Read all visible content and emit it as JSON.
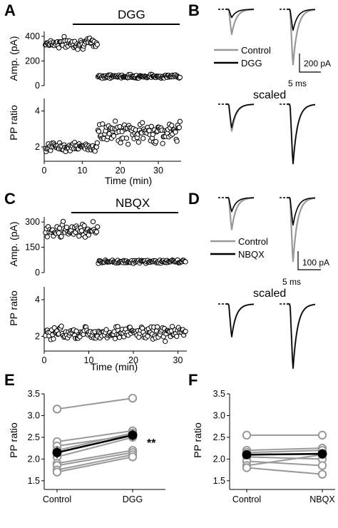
{
  "panels": {
    "A": "A",
    "B": "B",
    "C": "C",
    "D": "D",
    "E": "E",
    "F": "F"
  },
  "colors": {
    "control": "#999999",
    "drug": "#000000"
  },
  "traces": {
    "B": {
      "legend": [
        "Control",
        "DGG"
      ],
      "scale_amp": "200 pA",
      "scale_time": "5 ms",
      "scaled_label": "scaled",
      "control_p1": 0.45,
      "control_p2": 1.0,
      "drug_p1": 0.15,
      "drug_p2": 0.38
    },
    "D": {
      "legend": [
        "Control",
        "NBQX"
      ],
      "scale_amp": "100 pA",
      "scale_time": "5 ms",
      "scaled_label": "scaled",
      "control_p1": 0.5,
      "control_p2": 1.0,
      "drug_p1": 0.22,
      "drug_p2": 0.43
    }
  },
  "chart_data": [
    {
      "panel": "A",
      "type": "scatter",
      "drug_label": "DGG",
      "drug_start": 7.5,
      "xlabel": "Time (min)",
      "xticks": [
        0,
        10,
        20,
        30
      ],
      "xlim": [
        0,
        36
      ],
      "top": {
        "ylabel": "Amp. (pA)",
        "yticks": [
          0,
          200,
          400
        ],
        "ylim": [
          0,
          440
        ],
        "baseline": 345,
        "baseline_sd": 35,
        "baseline_end": 14,
        "drug": 75,
        "drug_sd": 12
      },
      "bottom": {
        "ylabel": "PP ratio",
        "yticks": [
          2,
          4
        ],
        "ylim": [
          1.2,
          4.7
        ],
        "baseline": 2.0,
        "baseline_sd": 0.2,
        "baseline_end": 14,
        "drug": 2.8,
        "drug_sd": 0.45
      },
      "n_points": 180
    },
    {
      "panel": "C",
      "type": "scatter",
      "drug_label": "NBQX",
      "drug_start": 6,
      "xlabel": "Time (min)",
      "xticks": [
        0,
        10,
        20,
        30
      ],
      "xlim": [
        0,
        32
      ],
      "top": {
        "ylabel": "Amp. (pA)",
        "yticks": [
          0,
          150,
          300
        ],
        "ylim": [
          0,
          330
        ],
        "baseline": 255,
        "baseline_sd": 35,
        "baseline_end": 12,
        "drug": 65,
        "drug_sd": 8
      },
      "bottom": {
        "ylabel": "PP ratio",
        "yticks": [
          2,
          4
        ],
        "ylim": [
          1.2,
          4.7
        ],
        "baseline": 2.2,
        "baseline_sd": 0.3,
        "baseline_end": 32,
        "drug": 2.2,
        "drug_sd": 0.3
      },
      "n_points": 160
    },
    {
      "panel": "E",
      "type": "line",
      "categories": [
        "Control",
        "DGG"
      ],
      "ylabel": "PP ratio",
      "yticks": [
        "1.5",
        "2.0",
        "2.5",
        "3.0",
        "3.5"
      ],
      "ylim": [
        1.3,
        3.5
      ],
      "cells": [
        [
          3.15,
          3.4
        ],
        [
          2.4,
          2.65
        ],
        [
          2.3,
          2.55
        ],
        [
          2.2,
          2.6
        ],
        [
          2.05,
          2.5
        ],
        [
          1.9,
          2.2
        ],
        [
          1.85,
          2.15
        ],
        [
          1.75,
          2.1
        ],
        [
          1.7,
          2.05
        ]
      ],
      "mean": [
        2.15,
        2.55
      ],
      "sem": [
        0.13,
        0.12
      ],
      "significance": "**"
    },
    {
      "panel": "F",
      "type": "line",
      "categories": [
        "Control",
        "NBQX"
      ],
      "ylabel": "PP ratio",
      "yticks": [
        "1.5",
        "2.0",
        "2.5",
        "3.0",
        "3.5"
      ],
      "ylim": [
        1.3,
        3.5
      ],
      "cells": [
        [
          2.55,
          2.55
        ],
        [
          2.2,
          2.25
        ],
        [
          2.15,
          2.2
        ],
        [
          2.05,
          2.0
        ],
        [
          1.95,
          1.85
        ],
        [
          1.85,
          2.1
        ],
        [
          1.8,
          1.65
        ]
      ],
      "mean": [
        2.1,
        2.12
      ],
      "sem": [
        0.1,
        0.1
      ]
    }
  ]
}
